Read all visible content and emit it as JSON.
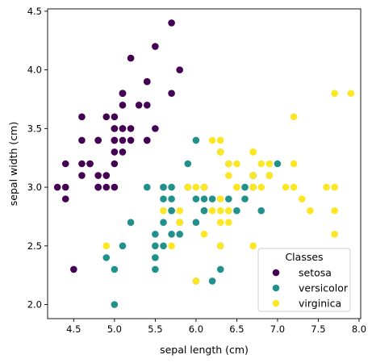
{
  "chart_data": {
    "type": "scatter",
    "title": "",
    "xlabel": "sepal length (cm)",
    "ylabel": "sepal width (cm)",
    "xlim": [
      4.18,
      8.02
    ],
    "ylim": [
      1.88,
      4.52
    ],
    "xticks": [
      4.5,
      5.0,
      5.5,
      6.0,
      6.5,
      7.0,
      7.5,
      8.0
    ],
    "xtick_labels": [
      "4.5",
      "5.0",
      "5.5",
      "6.0",
      "6.5",
      "7.0",
      "7.5",
      "8.0"
    ],
    "yticks": [
      2.0,
      2.5,
      3.0,
      3.5,
      4.0,
      4.5
    ],
    "ytick_labels": [
      "2.0",
      "2.5",
      "3.0",
      "3.5",
      "4.0",
      "4.5"
    ],
    "grid": false,
    "legend": {
      "title": "Classes",
      "placement": "lower-right"
    },
    "series": [
      {
        "name": "setosa",
        "color": "#440154",
        "points": [
          [
            5.1,
            3.5
          ],
          [
            4.9,
            3.0
          ],
          [
            4.7,
            3.2
          ],
          [
            4.6,
            3.1
          ],
          [
            5.0,
            3.6
          ],
          [
            5.4,
            3.9
          ],
          [
            4.6,
            3.4
          ],
          [
            5.0,
            3.4
          ],
          [
            4.4,
            2.9
          ],
          [
            4.9,
            3.1
          ],
          [
            5.4,
            3.7
          ],
          [
            4.8,
            3.4
          ],
          [
            4.8,
            3.0
          ],
          [
            4.3,
            3.0
          ],
          [
            5.8,
            4.0
          ],
          [
            5.7,
            4.4
          ],
          [
            5.4,
            3.9
          ],
          [
            5.1,
            3.5
          ],
          [
            5.7,
            3.8
          ],
          [
            5.1,
            3.8
          ],
          [
            5.4,
            3.4
          ],
          [
            5.1,
            3.7
          ],
          [
            4.6,
            3.6
          ],
          [
            5.1,
            3.3
          ],
          [
            4.8,
            3.4
          ],
          [
            5.0,
            3.0
          ],
          [
            5.0,
            3.4
          ],
          [
            5.2,
            3.5
          ],
          [
            5.2,
            3.4
          ],
          [
            4.7,
            3.2
          ],
          [
            4.8,
            3.1
          ],
          [
            5.4,
            3.4
          ],
          [
            5.2,
            4.1
          ],
          [
            5.5,
            4.2
          ],
          [
            4.9,
            3.1
          ],
          [
            5.0,
            3.2
          ],
          [
            5.5,
            3.5
          ],
          [
            4.9,
            3.6
          ],
          [
            4.4,
            3.0
          ],
          [
            5.1,
            3.4
          ],
          [
            5.0,
            3.5
          ],
          [
            4.5,
            2.3
          ],
          [
            4.4,
            3.2
          ],
          [
            5.0,
            3.5
          ],
          [
            5.1,
            3.8
          ],
          [
            4.8,
            3.0
          ],
          [
            5.1,
            3.8
          ],
          [
            4.6,
            3.2
          ],
          [
            5.3,
            3.7
          ],
          [
            5.0,
            3.3
          ]
        ]
      },
      {
        "name": "versicolor",
        "color": "#21918c",
        "points": [
          [
            7.0,
            3.2
          ],
          [
            6.4,
            3.2
          ],
          [
            6.9,
            3.1
          ],
          [
            5.5,
            2.3
          ],
          [
            6.5,
            2.8
          ],
          [
            5.7,
            2.8
          ],
          [
            6.3,
            3.3
          ],
          [
            4.9,
            2.4
          ],
          [
            6.6,
            2.9
          ],
          [
            5.2,
            2.7
          ],
          [
            5.0,
            2.0
          ],
          [
            5.9,
            3.0
          ],
          [
            6.0,
            2.2
          ],
          [
            6.1,
            2.9
          ],
          [
            5.6,
            2.9
          ],
          [
            6.7,
            3.1
          ],
          [
            5.6,
            3.0
          ],
          [
            5.8,
            2.7
          ],
          [
            6.2,
            2.2
          ],
          [
            5.6,
            2.5
          ],
          [
            5.9,
            3.2
          ],
          [
            6.1,
            2.8
          ],
          [
            6.3,
            2.5
          ],
          [
            6.1,
            2.8
          ],
          [
            6.4,
            2.9
          ],
          [
            6.6,
            3.0
          ],
          [
            6.8,
            2.8
          ],
          [
            6.7,
            3.0
          ],
          [
            6.0,
            2.9
          ],
          [
            5.7,
            2.6
          ],
          [
            5.5,
            2.4
          ],
          [
            5.5,
            2.4
          ],
          [
            5.8,
            2.7
          ],
          [
            6.0,
            2.7
          ],
          [
            5.4,
            3.0
          ],
          [
            6.0,
            3.4
          ],
          [
            6.7,
            3.1
          ],
          [
            6.3,
            2.3
          ],
          [
            5.6,
            3.0
          ],
          [
            5.5,
            2.5
          ],
          [
            5.5,
            2.6
          ],
          [
            6.1,
            3.0
          ],
          [
            5.8,
            2.6
          ],
          [
            5.0,
            2.3
          ],
          [
            5.6,
            2.7
          ],
          [
            5.7,
            3.0
          ],
          [
            5.7,
            2.9
          ],
          [
            6.2,
            2.9
          ],
          [
            5.1,
            2.5
          ],
          [
            5.7,
            2.8
          ]
        ]
      },
      {
        "name": "virginica",
        "color": "#fde725",
        "points": [
          [
            6.3,
            3.3
          ],
          [
            5.8,
            2.7
          ],
          [
            7.1,
            3.0
          ],
          [
            6.3,
            2.9
          ],
          [
            6.5,
            3.0
          ],
          [
            7.6,
            3.0
          ],
          [
            4.9,
            2.5
          ],
          [
            7.3,
            2.9
          ],
          [
            6.7,
            2.5
          ],
          [
            7.2,
            3.6
          ],
          [
            6.5,
            3.2
          ],
          [
            6.4,
            2.7
          ],
          [
            6.8,
            3.0
          ],
          [
            5.7,
            2.5
          ],
          [
            5.8,
            2.8
          ],
          [
            6.4,
            3.2
          ],
          [
            6.5,
            3.0
          ],
          [
            7.7,
            3.8
          ],
          [
            7.7,
            2.6
          ],
          [
            6.0,
            2.2
          ],
          [
            6.9,
            3.2
          ],
          [
            5.6,
            2.8
          ],
          [
            7.7,
            2.8
          ],
          [
            6.3,
            2.7
          ],
          [
            6.7,
            3.3
          ],
          [
            7.2,
            3.2
          ],
          [
            6.2,
            2.8
          ],
          [
            6.1,
            3.0
          ],
          [
            6.4,
            2.8
          ],
          [
            7.2,
            3.0
          ],
          [
            7.4,
            2.8
          ],
          [
            7.9,
            3.8
          ],
          [
            6.4,
            2.8
          ],
          [
            6.3,
            2.8
          ],
          [
            6.1,
            2.6
          ],
          [
            7.7,
            3.0
          ],
          [
            6.3,
            3.4
          ],
          [
            6.4,
            3.1
          ],
          [
            6.0,
            3.0
          ],
          [
            6.9,
            3.1
          ],
          [
            6.7,
            3.1
          ],
          [
            6.9,
            3.1
          ],
          [
            5.8,
            2.7
          ],
          [
            6.8,
            3.2
          ],
          [
            6.7,
            3.3
          ],
          [
            6.7,
            3.0
          ],
          [
            6.3,
            2.5
          ],
          [
            6.5,
            3.0
          ],
          [
            6.2,
            3.4
          ],
          [
            5.9,
            3.0
          ]
        ]
      }
    ]
  }
}
